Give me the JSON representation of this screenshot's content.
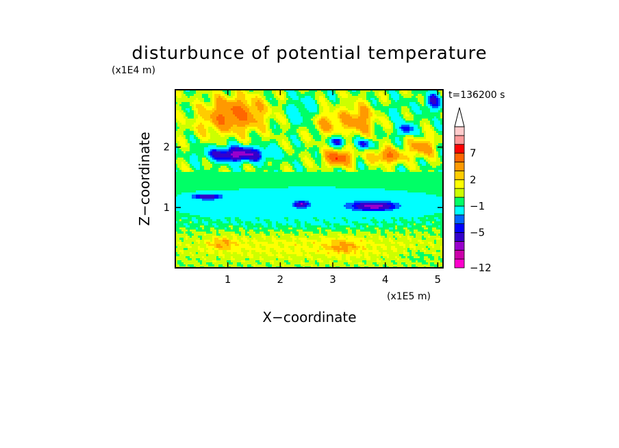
{
  "chart_data": {
    "type": "heatmap",
    "title": "disturbunce of potential temperature",
    "xlabel": "X−coordinate",
    "ylabel": "Z−coordinate",
    "x_unit": "(x1E5 m)",
    "y_unit": "(x1E4 m)",
    "time_label": "t=136200 s",
    "xlim": [
      0,
      5.1
    ],
    "ylim": [
      0,
      2.95
    ],
    "x_ticks": [
      1,
      2,
      3,
      4,
      5
    ],
    "y_ticks": [
      1,
      2
    ],
    "x_tick_labels": [
      "1",
      "2",
      "3",
      "4",
      "5"
    ],
    "y_tick_labels": [
      "1",
      "2"
    ],
    "colorbar": {
      "levels": [
        -12,
        -11,
        -9,
        -7,
        -5,
        -4,
        -3,
        -1,
        0,
        1,
        2,
        3,
        5,
        7,
        8,
        9
      ],
      "labels": [
        "−12",
        "−5",
        "−1",
        "2",
        "7"
      ],
      "label_values": [
        -12,
        -5,
        -1,
        2,
        7
      ],
      "colors": [
        "#ff00cc",
        "#cc00aa",
        "#9900cc",
        "#3300cc",
        "#0000ff",
        "#0066ff",
        "#00ffff",
        "#00ff66",
        "#ccff00",
        "#ffff00",
        "#ffcc00",
        "#ff9900",
        "#ff6600",
        "#ff0000",
        "#ff9999",
        "#ffcccc"
      ],
      "extend": "max"
    },
    "features": [
      {
        "x": 1.15,
        "z": 2.55,
        "rx": 0.55,
        "rz": 0.28,
        "v": 5.5
      },
      {
        "x": 1.2,
        "z": 1.88,
        "rx": 0.55,
        "rz": 0.12,
        "v": -8
      },
      {
        "x": 3.1,
        "z": 1.82,
        "rx": 0.25,
        "rz": 0.12,
        "v": 7
      },
      {
        "x": 4.05,
        "z": 1.85,
        "rx": 0.3,
        "rz": 0.12,
        "v": 5
      },
      {
        "x": 4.7,
        "z": 2.0,
        "rx": 0.25,
        "rz": 0.15,
        "v": 4
      },
      {
        "x": 3.5,
        "z": 2.45,
        "rx": 0.3,
        "rz": 0.25,
        "v": 4
      },
      {
        "x": 2.9,
        "z": 2.4,
        "rx": 0.3,
        "rz": 0.2,
        "v": 3
      },
      {
        "x": 3.1,
        "z": 2.1,
        "rx": 0.15,
        "rz": 0.08,
        "v": -5
      },
      {
        "x": 3.6,
        "z": 2.05,
        "rx": 0.15,
        "rz": 0.08,
        "v": -5
      },
      {
        "x": 4.4,
        "z": 2.3,
        "rx": 0.15,
        "rz": 0.1,
        "v": -5
      },
      {
        "x": 2.4,
        "z": 2.6,
        "rx": 0.3,
        "rz": 0.25,
        "v": -2
      },
      {
        "x": 4.2,
        "z": 2.6,
        "rx": 0.25,
        "rz": 0.2,
        "v": -1
      },
      {
        "x": 4.9,
        "z": 2.75,
        "rx": 0.15,
        "rz": 0.15,
        "v": -5
      },
      {
        "x": 0.65,
        "z": 2.35,
        "rx": 0.4,
        "rz": 0.2,
        "v": 1
      },
      {
        "x": 2.6,
        "z": 1.55,
        "rx": 1.6,
        "rz": 0.22,
        "v": 0
      },
      {
        "x": 2.6,
        "z": 1.05,
        "rx": 2.9,
        "rz": 0.3,
        "v": -2.5
      },
      {
        "x": 3.8,
        "z": 1.02,
        "rx": 0.4,
        "rz": 0.07,
        "v": -6
      },
      {
        "x": 0.6,
        "z": 1.18,
        "rx": 0.3,
        "rz": 0.05,
        "v": -5
      },
      {
        "x": 2.4,
        "z": 1.05,
        "rx": 0.12,
        "rz": 0.05,
        "v": -5
      },
      {
        "x": 2.6,
        "z": 0.7,
        "rx": 2.9,
        "rz": 0.12,
        "v": -0.5
      },
      {
        "x": 2.6,
        "z": 0.35,
        "rx": 2.9,
        "rz": 0.25,
        "v": 1.3
      },
      {
        "x": 0.9,
        "z": 0.4,
        "rx": 0.25,
        "rz": 0.1,
        "v": 2.5
      },
      {
        "x": 3.2,
        "z": 0.35,
        "rx": 0.3,
        "rz": 0.12,
        "v": 2.5
      },
      {
        "x": 4.6,
        "z": 0.2,
        "rx": 0.3,
        "rz": 0.1,
        "v": -0.8
      }
    ]
  }
}
